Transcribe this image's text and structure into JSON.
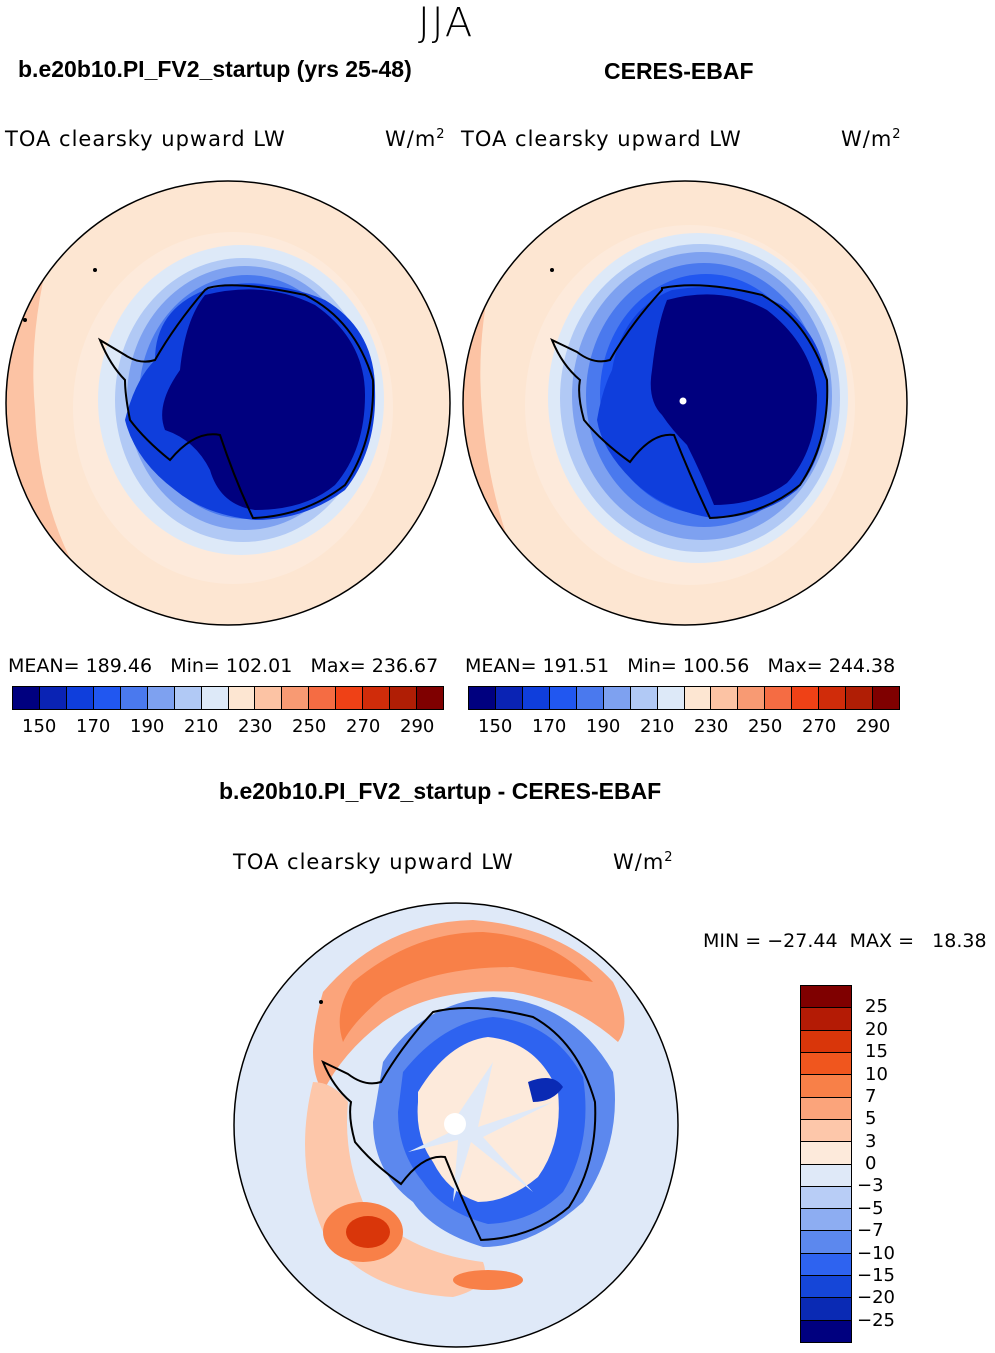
{
  "season": "JJA",
  "panels": {
    "model": {
      "title": "b.e20b10.PI_FV2_startup (yrs 25-48)",
      "variable": "TOA clearsky upward LW",
      "units": "W/m",
      "units_exp": "2",
      "mean_label": "MEAN=",
      "mean": "189.46",
      "min_label": "Min=",
      "min": "102.01",
      "max_label": "Max=",
      "max": "236.67"
    },
    "obs": {
      "title": "CERES-EBAF",
      "variable": "TOA clearsky upward LW",
      "units": "W/m",
      "units_exp": "2",
      "mean_label": "MEAN=",
      "mean": "191.51",
      "min_label": "Min=",
      "min": "100.56",
      "max_label": "Max=",
      "max": "244.38"
    },
    "diff": {
      "title": "b.e20b10.PI_FV2_startup - CERES-EBAF",
      "variable": "TOA clearsky upward LW",
      "units": "W/m",
      "units_exp": "2",
      "min_label": "MIN =",
      "min": "−27.44",
      "max_label": "MAX =",
      "max": "18.38"
    }
  },
  "abs_colorbar": {
    "colors": [
      "#00007f",
      "#0a23b4",
      "#0f3edc",
      "#2157f0",
      "#4a79ee",
      "#7ea1f0",
      "#b1c9f5",
      "#dde9f8",
      "#fde6d2",
      "#fcc3a4",
      "#f89a73",
      "#f56c43",
      "#ef4116",
      "#d02c0a",
      "#b01e05",
      "#7f0000"
    ],
    "labels": [
      "150",
      "170",
      "190",
      "210",
      "230",
      "250",
      "270",
      "290"
    ]
  },
  "diff_colorbar": {
    "colors": [
      "#7f0000",
      "#b41b05",
      "#d9360a",
      "#f0561e",
      "#f88048",
      "#fba47b",
      "#fdc7aa",
      "#fdeadb",
      "#dfe9f8",
      "#b8cdf6",
      "#8dadf2",
      "#5c88ee",
      "#2e63f0",
      "#1546d8",
      "#0a2ab4",
      "#00007f"
    ],
    "labels": [
      "25",
      "20",
      "15",
      "10",
      "7",
      "5",
      "3",
      "0",
      "−3",
      "−5",
      "−7",
      "−10",
      "−15",
      "−20",
      "−25"
    ]
  }
}
